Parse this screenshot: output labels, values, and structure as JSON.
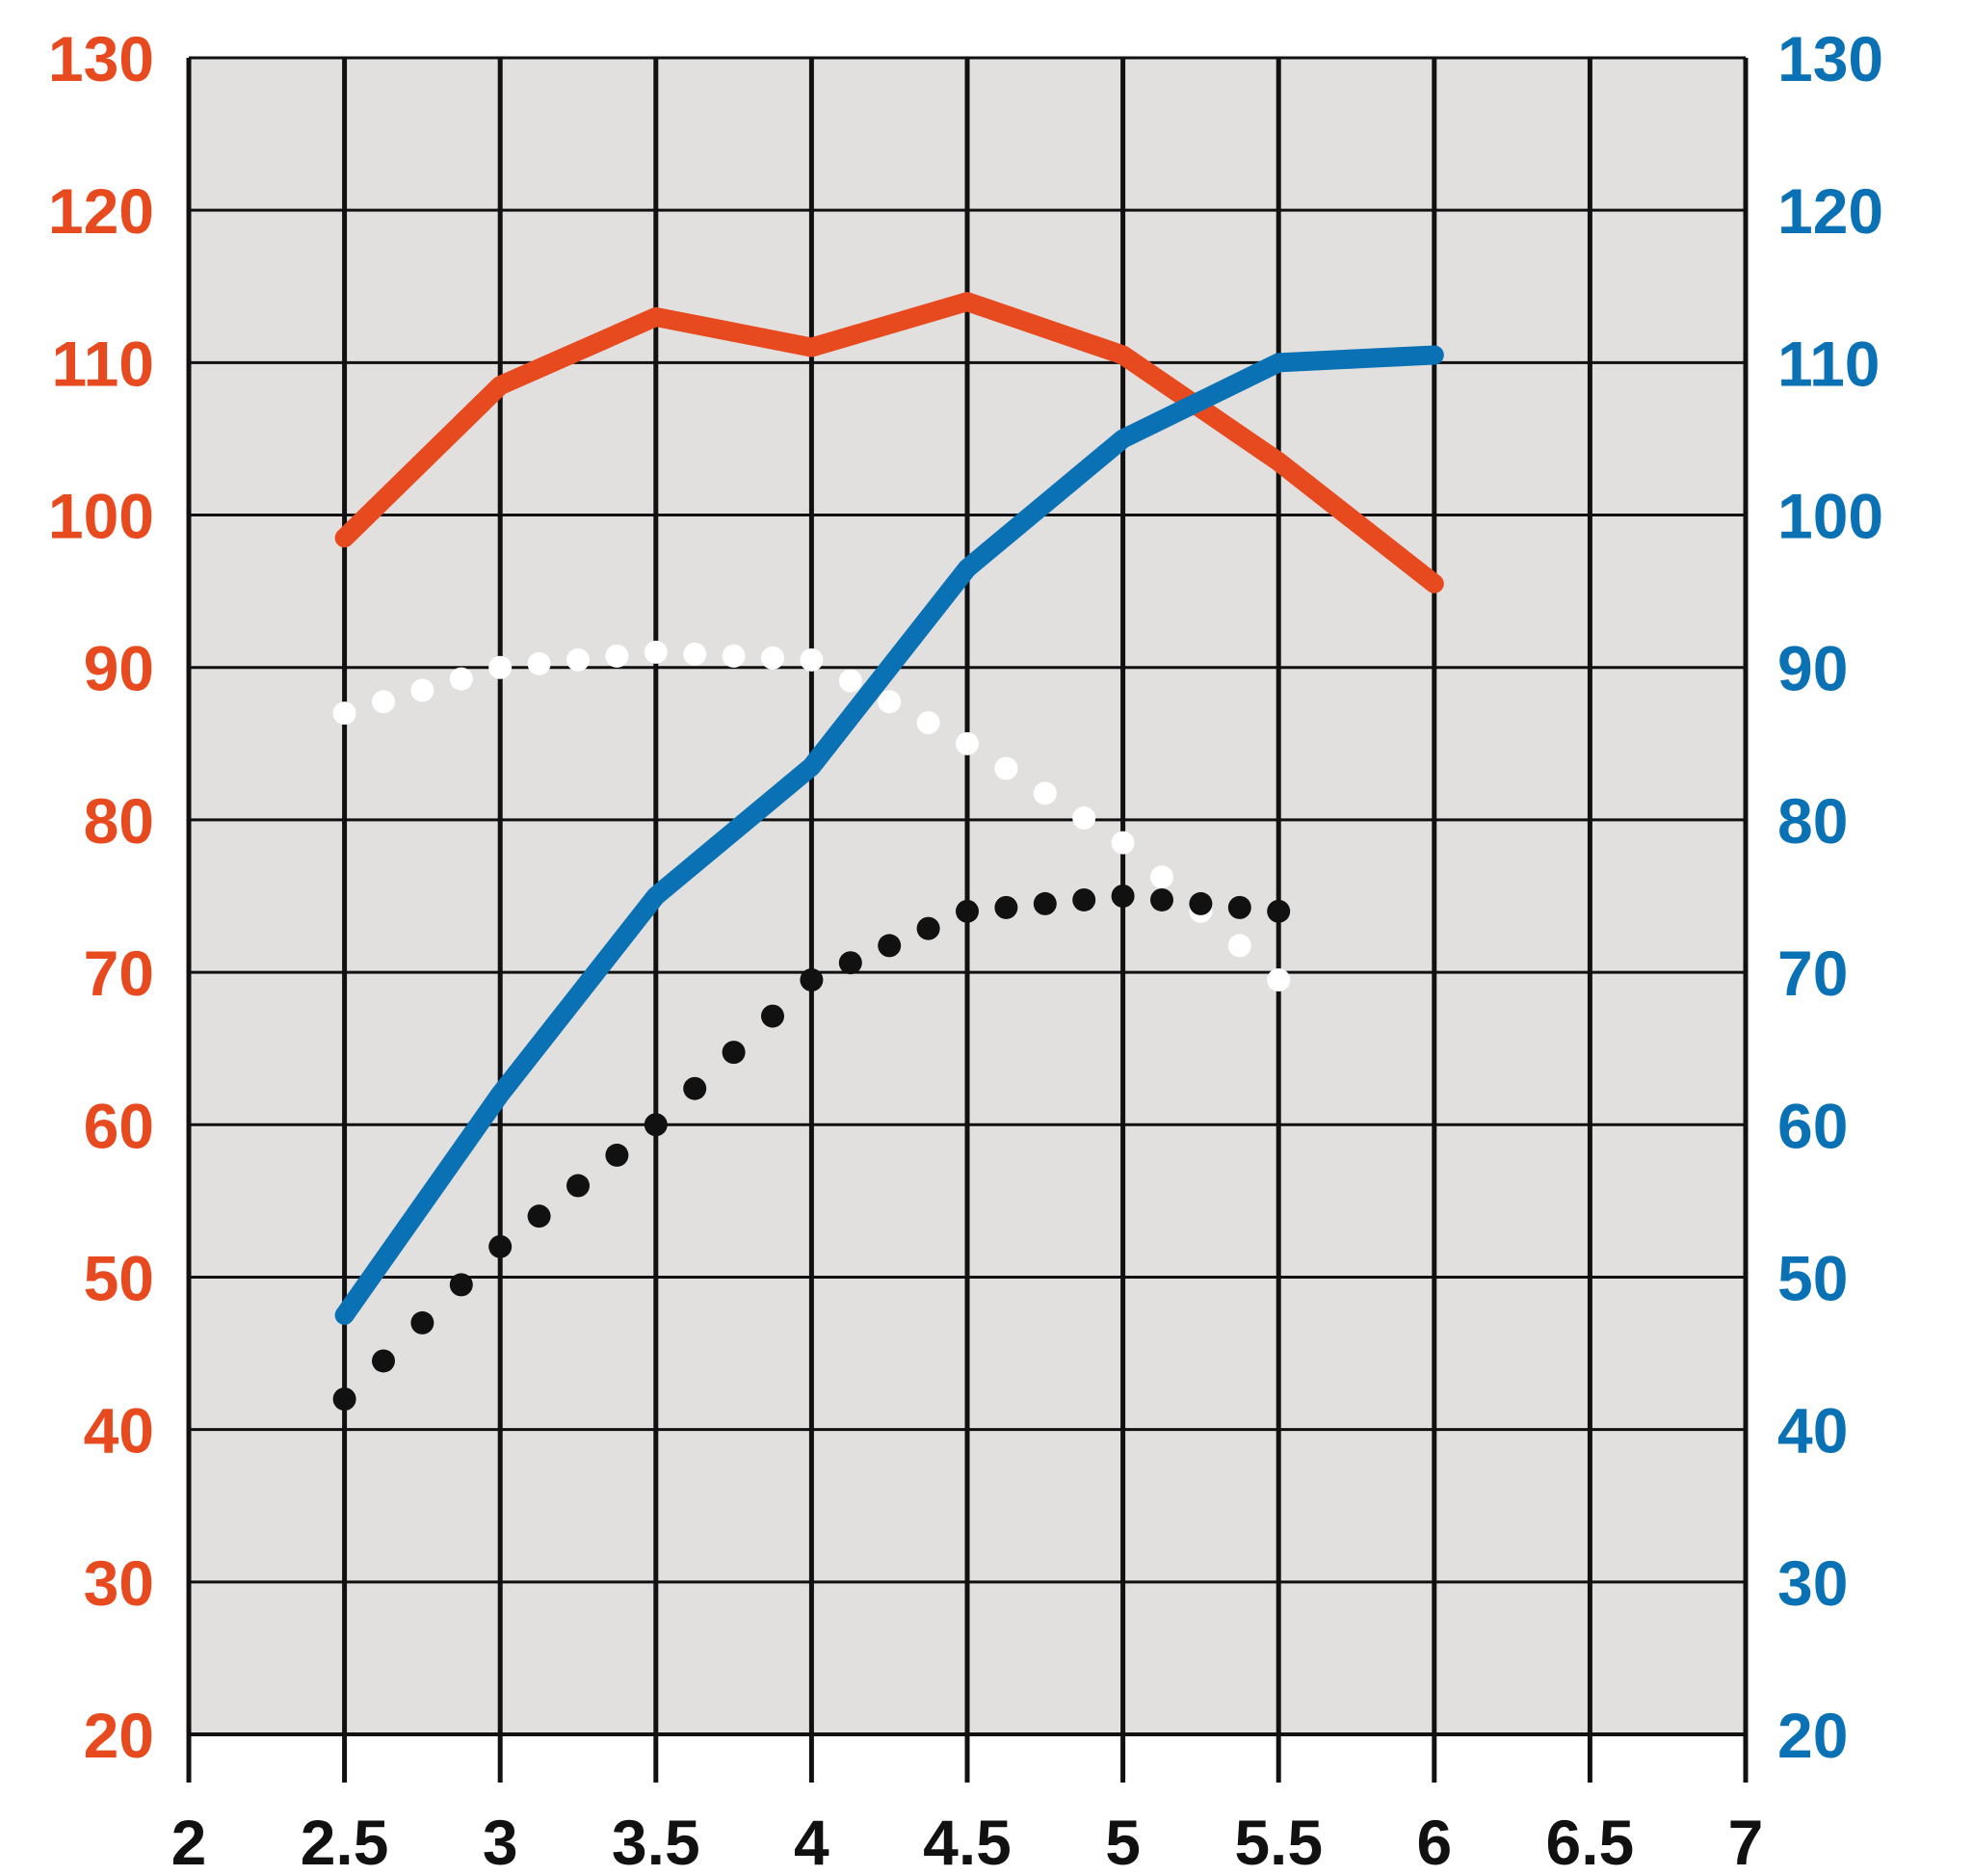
{
  "chart_data": {
    "type": "line",
    "title": "",
    "xlabel": "",
    "ylabel_left": "",
    "ylabel_right": "",
    "xlim": [
      2,
      7
    ],
    "ylim_left": [
      20,
      130
    ],
    "ylim_right": [
      20,
      130
    ],
    "x_ticks": [
      "2",
      "2.5",
      "3",
      "3.5",
      "4",
      "4.5",
      "5",
      "5.5",
      "6",
      "6.5",
      "7"
    ],
    "y_ticks_left": [
      "130",
      "120",
      "110",
      "100",
      "90",
      "80",
      "70",
      "60",
      "50",
      "40",
      "30",
      "20"
    ],
    "y_ticks_right": [
      "130",
      "120",
      "110",
      "100",
      "90",
      "80",
      "70",
      "60",
      "50",
      "40",
      "30",
      "20"
    ],
    "grid": true,
    "legend": "none",
    "colors": {
      "plot_bg": "#e2e0df",
      "grid": "#111111",
      "left_axis": "#e84a1f",
      "right_axis": "#0a72b4",
      "x_axis": "#111111"
    },
    "series": [
      {
        "style": "solid",
        "axis": "left",
        "color": "#e84a1f",
        "x": [
          2.5,
          3,
          3.5,
          4,
          4.5,
          5,
          5.5,
          6
        ],
        "y": [
          98.5,
          108.5,
          113,
          111,
          114,
          110.5,
          103.5,
          95.5
        ]
      },
      {
        "style": "solid",
        "axis": "right",
        "color": "#0a72b4",
        "x": [
          2.5,
          3,
          3.5,
          4,
          4.5,
          5,
          5.5,
          6
        ],
        "y": [
          47.5,
          62,
          75,
          83.5,
          96.5,
          105,
          110,
          110.5
        ]
      },
      {
        "style": "dotted",
        "axis": "left",
        "color": "#ffffff",
        "x": [
          2.5,
          3,
          3.5,
          4,
          4.5,
          5,
          5.5
        ],
        "y": [
          87,
          90,
          91,
          90.5,
          85,
          78.5,
          69.5
        ]
      },
      {
        "style": "dotted",
        "axis": "left",
        "color": "#111111",
        "x": [
          2.5,
          3,
          3.5,
          4,
          4.5,
          5,
          5.5
        ],
        "y": [
          42,
          52,
          60,
          69.5,
          74,
          75,
          74
        ]
      }
    ]
  }
}
